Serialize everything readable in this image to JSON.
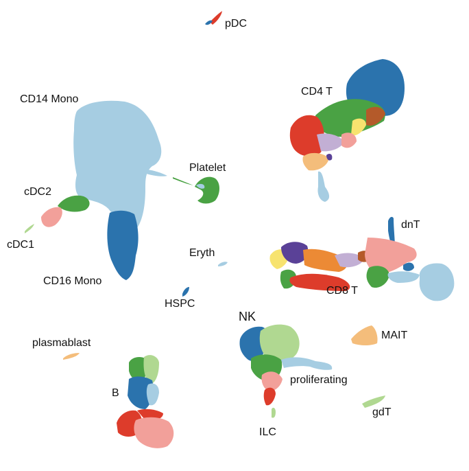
{
  "chart_data": {
    "type": "scatter",
    "title": "",
    "xlabel": "",
    "ylabel": "",
    "axes_visible": false,
    "grid": false,
    "legend": "none",
    "palette": {
      "dark_blue": "#2b73ad",
      "light_blue": "#a6cde2",
      "green": "#4aa244",
      "light_green": "#b0d891",
      "red": "#dd3c2b",
      "pink": "#f2a09a",
      "orange": "#ec8a35",
      "light_orange": "#f4bd7b",
      "purple": "#5a4197",
      "lavender": "#c2afd4",
      "yellow": "#f7e36f",
      "brown": "#b45a2a"
    },
    "clusters": [
      {
        "label": "pDC",
        "label_pos": "right",
        "colors": [
          "#dd3c2b",
          "#2b73ad"
        ]
      },
      {
        "label": "CD4 T",
        "label_pos": "upper-left",
        "colors": [
          "#2b73ad",
          "#4aa244",
          "#dd3c2b",
          "#f4bd7b",
          "#c2afd4",
          "#f7e36f",
          "#b45a2a",
          "#f2a09a",
          "#a6cde2",
          "#5a4197"
        ]
      },
      {
        "label": "CD14 Mono",
        "label_pos": "upper-left",
        "colors": [
          "#a6cde2"
        ]
      },
      {
        "label": "Platelet",
        "label_pos": "top",
        "colors": [
          "#4aa244",
          "#a6cde2"
        ]
      },
      {
        "label": "cDC2",
        "label_pos": "left",
        "colors": [
          "#4aa244",
          "#f2a09a"
        ]
      },
      {
        "label": "cDC1",
        "label_pos": "left",
        "colors": [
          "#b0d891"
        ]
      },
      {
        "label": "CD16 Mono",
        "label_pos": "bottom",
        "colors": [
          "#2b73ad",
          "#a6cde2"
        ]
      },
      {
        "label": "dnT",
        "label_pos": "right",
        "colors": [
          "#2b73ad"
        ]
      },
      {
        "label": "Eryth",
        "label_pos": "left",
        "colors": [
          "#a6cde2"
        ]
      },
      {
        "label": "CD8 T",
        "label_pos": "bottom",
        "colors": [
          "#5a4197",
          "#f7e36f",
          "#ec8a35",
          "#4aa244",
          "#dd3c2b",
          "#c2afd4",
          "#b45a2a",
          "#f2a09a",
          "#a6cde2",
          "#2b73ad"
        ]
      },
      {
        "label": "HSPC",
        "label_pos": "bottom",
        "colors": [
          "#2b73ad"
        ]
      },
      {
        "label": "NK",
        "label_pos": "top",
        "colors": [
          "#2b73ad",
          "#b0d891",
          "#4aa244",
          "#f2a09a",
          "#dd3c2b",
          "#a6cde2"
        ]
      },
      {
        "label": "MAIT",
        "label_pos": "right",
        "colors": [
          "#f4bd7b"
        ]
      },
      {
        "label": "plasmablast",
        "label_pos": "top",
        "colors": [
          "#f4bd7b"
        ]
      },
      {
        "label": "proliferating",
        "label_pos": "bottom",
        "colors": [
          "#a6cde2",
          "#b0d891"
        ]
      },
      {
        "label": "B",
        "label_pos": "left",
        "colors": [
          "#4aa244",
          "#b0d891",
          "#2b73ad",
          "#a6cde2",
          "#dd3c2b",
          "#f2a09a"
        ]
      },
      {
        "label": "gdT",
        "label_pos": "right",
        "colors": [
          "#b0d891"
        ]
      },
      {
        "label": "ILC",
        "label_pos": "bottom",
        "colors": [
          "#b0d891"
        ]
      }
    ]
  }
}
